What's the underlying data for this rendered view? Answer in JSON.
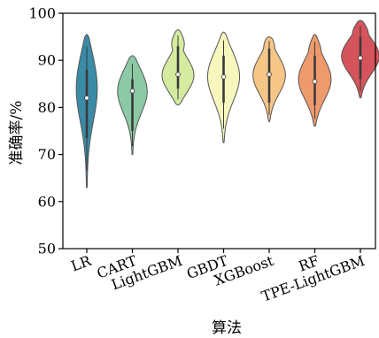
{
  "chart_data": {
    "type": "violin",
    "xlabel": "算法",
    "ylabel": "准确率/%",
    "ylim": [
      50,
      100
    ],
    "yticks": [
      50,
      60,
      70,
      80,
      90,
      100
    ],
    "grid": false,
    "legend": "none",
    "categories": [
      "LR",
      "CART",
      "LightGBM",
      "GBDT",
      "XGBoost",
      "RF",
      "TPE-LightGBM"
    ],
    "colors": [
      "#3a8ba6",
      "#8ccaa5",
      "#d5eba0",
      "#f6f6bd",
      "#f6c687",
      "#ee9a6d",
      "#d5535a"
    ],
    "violins": [
      {
        "min": 63,
        "max": 95.5,
        "median": 82,
        "q1": 73.5,
        "q3": 88,
        "mode": 85,
        "mode_half_width": 12,
        "upper_bulge": 9
      },
      {
        "min": 70,
        "max": 91,
        "median": 83.5,
        "q1": 75,
        "q3": 86,
        "mode": 84,
        "mode_half_width": 17,
        "upper_bulge": 12
      },
      {
        "min": 80.5,
        "max": 96.5,
        "median": 87,
        "q1": 84,
        "q3": 93,
        "mode": 86.5,
        "mode_half_width": 18,
        "upper_bulge": 10
      },
      {
        "min": 72.5,
        "max": 96,
        "median": 86.5,
        "q1": 81,
        "q3": 91,
        "mode": 87,
        "mode_half_width": 18,
        "upper_bulge": 11
      },
      {
        "min": 77,
        "max": 95,
        "median": 87,
        "q1": 81,
        "q3": 92.5,
        "mode": 87,
        "mode_half_width": 18,
        "upper_bulge": 10
      },
      {
        "min": 76,
        "max": 95.5,
        "median": 85.5,
        "q1": 80.5,
        "q3": 91,
        "mode": 86,
        "mode_half_width": 18,
        "upper_bulge": 10
      },
      {
        "min": 82,
        "max": 98.5,
        "median": 90.5,
        "q1": 86,
        "q3": 95,
        "mode": 91,
        "mode_half_width": 21,
        "upper_bulge": 13
      }
    ]
  }
}
